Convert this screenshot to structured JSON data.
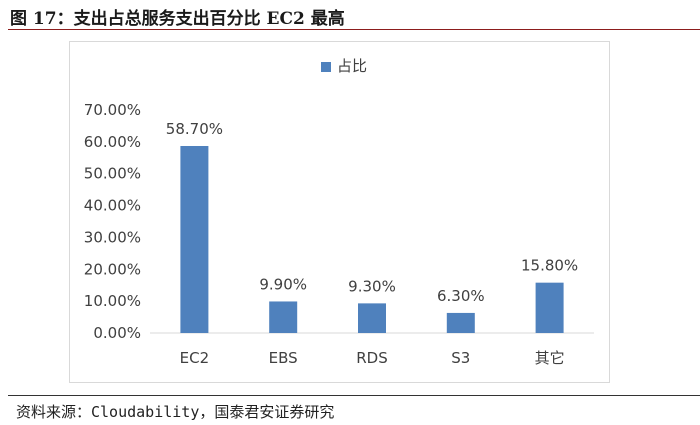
{
  "figure": {
    "title": "图 17：支出占总服务支出百分比 EC2 最高",
    "source": "资料来源：Cloudability，国泰君安证券研究"
  },
  "colors": {
    "bar": "#4f81bd",
    "title_rule": "#8c1d1d"
  },
  "chart_data": {
    "type": "bar",
    "categories": [
      "EC2",
      "EBS",
      "RDS",
      "S3",
      "其它"
    ],
    "series": [
      {
        "name": "占比",
        "values": [
          58.7,
          9.9,
          9.3,
          6.3,
          15.8
        ]
      }
    ],
    "data_labels": [
      "58.70%",
      "9.90%",
      "9.30%",
      "6.30%",
      "15.80%"
    ],
    "y_ticks": [
      "0.00%",
      "10.00%",
      "20.00%",
      "30.00%",
      "40.00%",
      "50.00%",
      "60.00%",
      "70.00%"
    ],
    "ylim": [
      0,
      70
    ],
    "grid": false,
    "legend_position": "top-center",
    "title": "",
    "xlabel": "",
    "ylabel": ""
  }
}
